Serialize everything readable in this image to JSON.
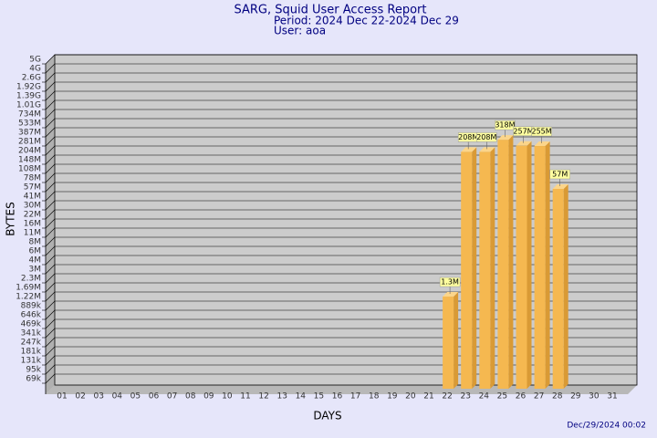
{
  "chart_data": {
    "type": "bar",
    "title": "SARG, Squid User Access Report",
    "subtitle": "Period: 2024 Dec 22-2024 Dec 29",
    "user": "User: aoa",
    "x_label": "DAYS",
    "y_label": "BYTES",
    "footer": "Dec/29/2024 00:02",
    "categories": [
      "01",
      "02",
      "03",
      "04",
      "05",
      "06",
      "07",
      "08",
      "09",
      "10",
      "11",
      "12",
      "13",
      "14",
      "15",
      "16",
      "17",
      "18",
      "19",
      "20",
      "21",
      "22",
      "23",
      "24",
      "25",
      "26",
      "27",
      "28",
      "29",
      "30",
      "31"
    ],
    "values": [
      null,
      null,
      null,
      null,
      null,
      null,
      null,
      null,
      null,
      null,
      null,
      null,
      null,
      null,
      null,
      null,
      null,
      null,
      null,
      null,
      null,
      1300000,
      208000000,
      208000000,
      318000000,
      257000000,
      255000000,
      57000000,
      null,
      null,
      null
    ],
    "value_labels": [
      null,
      null,
      null,
      null,
      null,
      null,
      null,
      null,
      null,
      null,
      null,
      null,
      null,
      null,
      null,
      null,
      null,
      null,
      null,
      null,
      null,
      "1.3M",
      "208M",
      "208M",
      "318M",
      "257M",
      "255M",
      "57M",
      null,
      null,
      null
    ],
    "color": "#f5b850",
    "log_scale": true,
    "grid": true,
    "ylim": [
      50000,
      5000000000
    ],
    "yticks": [
      {
        "value": 5000000000,
        "label": "5G"
      },
      {
        "value": 4000000000,
        "label": "4G"
      },
      {
        "value": 2600000000,
        "label": "2.6G"
      },
      {
        "value": 1920000000,
        "label": "1.92G"
      },
      {
        "value": 1390000000,
        "label": "1.39G"
      },
      {
        "value": 1010000000,
        "label": "1.01G"
      },
      {
        "value": 734000000,
        "label": "734M"
      },
      {
        "value": 533000000,
        "label": "533M"
      },
      {
        "value": 387000000,
        "label": "387M"
      },
      {
        "value": 281000000,
        "label": "281M"
      },
      {
        "value": 204000000,
        "label": "204M"
      },
      {
        "value": 148000000,
        "label": "148M"
      },
      {
        "value": 108000000,
        "label": "108M"
      },
      {
        "value": 78000000,
        "label": "78M"
      },
      {
        "value": 57000000,
        "label": "57M"
      },
      {
        "value": 41000000,
        "label": "41M"
      },
      {
        "value": 30000000,
        "label": "30M"
      },
      {
        "value": 22000000,
        "label": "22M"
      },
      {
        "value": 16000000,
        "label": "16M"
      },
      {
        "value": 11000000,
        "label": "11M"
      },
      {
        "value": 8000000,
        "label": "8M"
      },
      {
        "value": 6000000,
        "label": "6M"
      },
      {
        "value": 4000000,
        "label": "4M"
      },
      {
        "value": 3000000,
        "label": "3M"
      },
      {
        "value": 2300000,
        "label": "2.3M"
      },
      {
        "value": 1690000,
        "label": "1.69M"
      },
      {
        "value": 1220000,
        "label": "1.22M"
      },
      {
        "value": 889000,
        "label": "889k"
      },
      {
        "value": 646000,
        "label": "646k"
      },
      {
        "value": 469000,
        "label": "469k"
      },
      {
        "value": 341000,
        "label": "341k"
      },
      {
        "value": 247000,
        "label": "247k"
      },
      {
        "value": 181000,
        "label": "181k"
      },
      {
        "value": 131000,
        "label": "131k"
      },
      {
        "value": 95000,
        "label": "95k"
      },
      {
        "value": 69000,
        "label": "69k"
      }
    ]
  }
}
